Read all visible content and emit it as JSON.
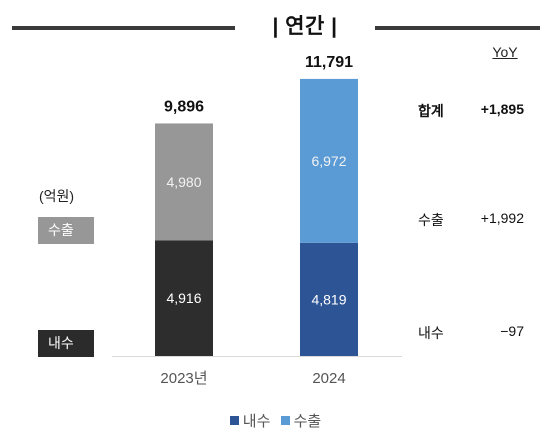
{
  "header": {
    "title": "| 연간 |"
  },
  "yoy": {
    "header": "YoY",
    "rows": [
      {
        "label": "합계",
        "value": "+1,895"
      },
      {
        "label": "수출",
        "value": "+1,992"
      },
      {
        "label": "내수",
        "value": "−97"
      }
    ]
  },
  "side": {
    "unit": "(억원)",
    "export_tag": "수출",
    "domestic_tag": "내수"
  },
  "legend": [
    {
      "label": "내수",
      "color": "#2d5596"
    },
    {
      "label": "수출",
      "color": "#5b9bd5"
    }
  ],
  "chart_data": {
    "type": "bar",
    "stacked": true,
    "categories": [
      "2023년",
      "2024"
    ],
    "series": [
      {
        "name": "내수",
        "values": [
          4916,
          4819
        ]
      },
      {
        "name": "수출",
        "values": [
          4980,
          6972
        ]
      }
    ],
    "value_labels": [
      [
        "4,916",
        "4,819"
      ],
      [
        "4,980",
        "6,972"
      ]
    ],
    "totals": [
      9896,
      11791
    ],
    "total_labels": [
      "9,896",
      "11,791"
    ],
    "colors": {
      "2023년": [
        "#2d2d2d",
        "#979797"
      ],
      "2024": [
        "#2d5596",
        "#5b9bd5"
      ]
    },
    "ylim": [
      0,
      12000
    ]
  }
}
